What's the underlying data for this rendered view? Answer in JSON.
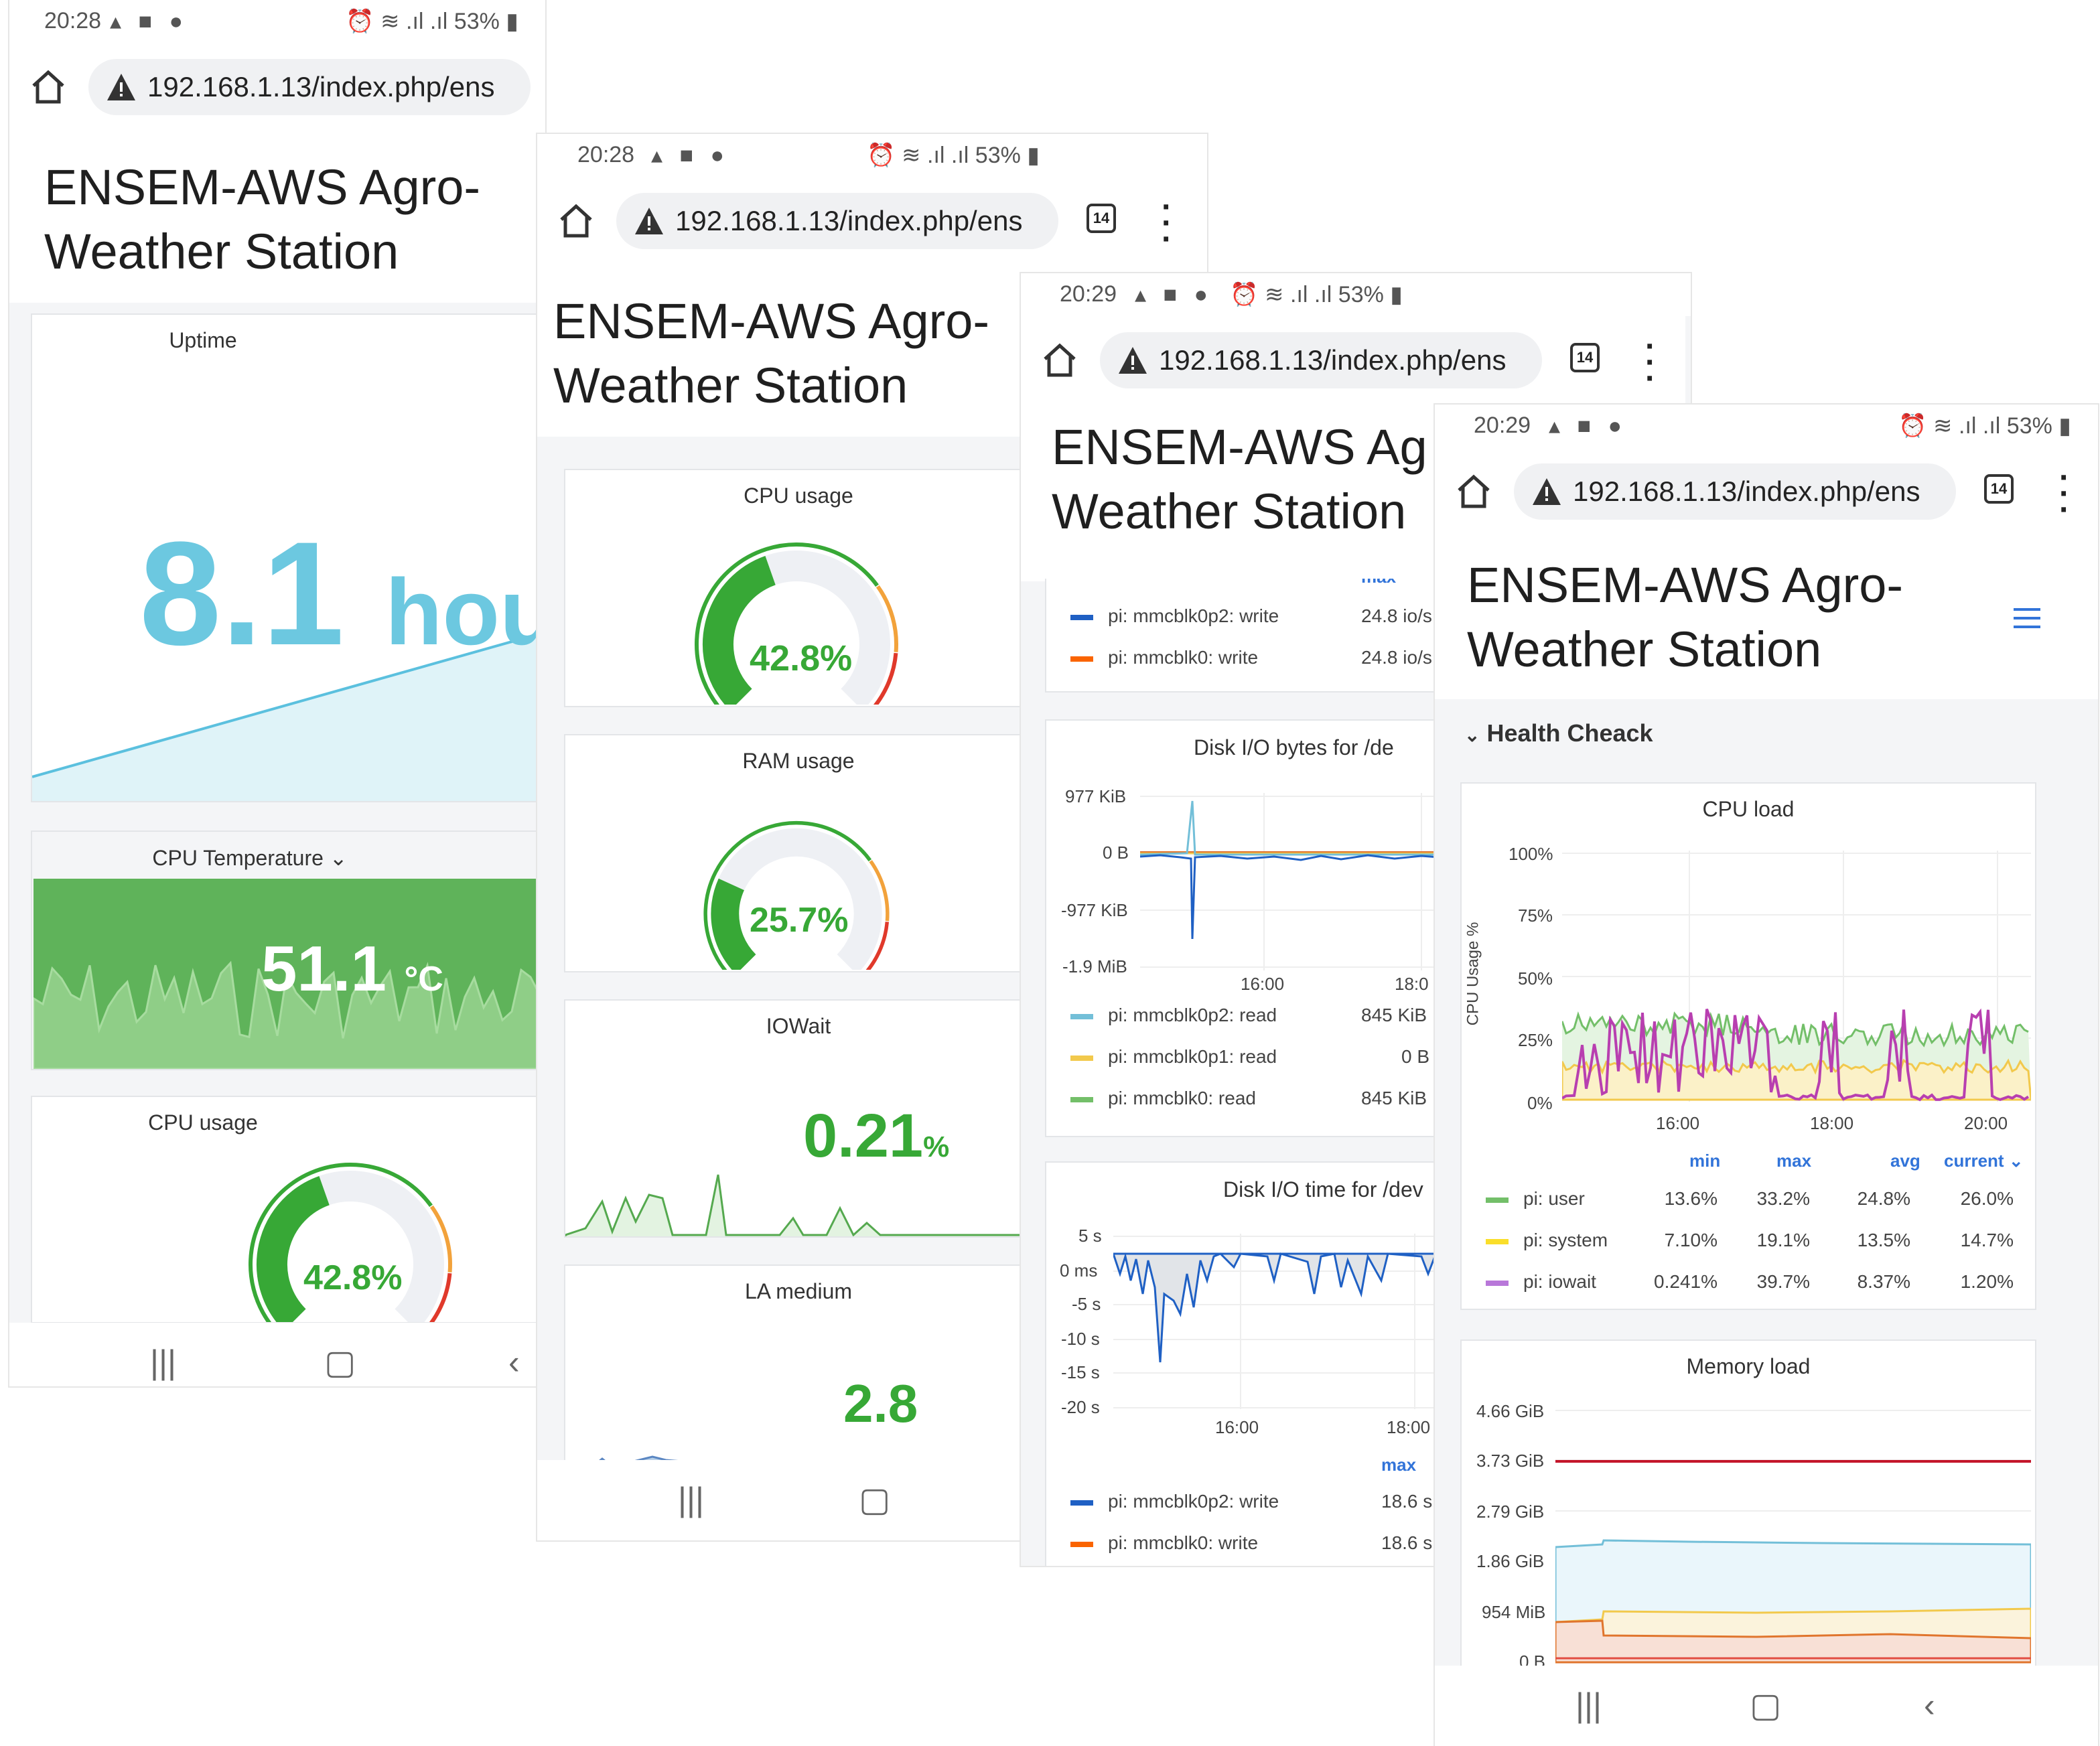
{
  "status": {
    "p1": {
      "time": "20:28",
      "battery": "53%"
    },
    "p2": {
      "time": "20:28",
      "battery": "53%"
    },
    "p3": {
      "time": "20:29",
      "battery": "53%"
    },
    "p4": {
      "time": "20:29",
      "battery": "53%"
    }
  },
  "browser": {
    "url": "192.168.1.13/index.php/ens",
    "tab_count": "14"
  },
  "page_title": "ENSEM-AWS Agro-\nWeather Station",
  "page_title_cut": "ENSEM-AWS Ag\nWeather Station",
  "screen1": {
    "uptime": {
      "title": "Uptime",
      "value": "8.1",
      "unit": "hou"
    },
    "cpu_temp": {
      "title": "CPU Temperature",
      "value": "51.1",
      "unit": "°C"
    },
    "cpu_usage": {
      "title": "CPU usage",
      "value": "42.8%",
      "fraction": 0.428
    }
  },
  "screen2": {
    "cpu_usage": {
      "title": "CPU usage",
      "value": "42.8%",
      "fraction": 0.428
    },
    "ram_usage": {
      "title": "RAM usage",
      "value": "25.7%",
      "fraction": 0.257
    },
    "iowait": {
      "title": "IOWait",
      "value": "0.21",
      "unit": "%"
    },
    "la_medium": {
      "title": "LA medium",
      "value": "2.8"
    }
  },
  "screen3": {
    "top_legend": [
      {
        "name": "pi: mmcblk0p2: write",
        "value": "24.8 io/s",
        "color": "#1f60c4"
      },
      {
        "name": "pi: mmcblk0: write",
        "value": "24.8 io/s",
        "color": "#fa6400"
      }
    ],
    "top_legend_header": "max",
    "disk_bytes": {
      "title": "Disk I/O bytes for /de",
      "y_ticks": [
        "977 KiB",
        "0 B",
        "-977 KiB",
        "-1.9 MiB"
      ],
      "x_ticks": [
        "16:00",
        "18:0"
      ],
      "legend": [
        {
          "name": "pi: mmcblk0p2: read",
          "value": "845 KiB",
          "color": "#73bfd8"
        },
        {
          "name": "pi: mmcblk0p1: read",
          "value": "0 B",
          "color": "#f2c94c"
        },
        {
          "name": "pi: mmcblk0: read",
          "value": "845 KiB",
          "color": "#73bf69"
        }
      ]
    },
    "disk_time": {
      "title": "Disk I/O time for /dev",
      "y_ticks": [
        "5 s",
        "0 ms",
        "-5 s",
        "-10 s",
        "-15 s",
        "-20 s"
      ],
      "x_ticks": [
        "16:00",
        "18:00"
      ],
      "legend_header": "max",
      "legend": [
        {
          "name": "pi: mmcblk0p2: write",
          "value": "18.6 s",
          "color": "#1f60c4"
        },
        {
          "name": "pi: mmcblk0: write",
          "value": "18.6 s",
          "color": "#fa6400"
        }
      ]
    }
  },
  "screen4": {
    "section": "Health Cheack",
    "cpu_load": {
      "title": "CPU load",
      "ylabel": "CPU Usage %",
      "y_ticks": [
        "100%",
        "75%",
        "50%",
        "25%",
        "0%"
      ],
      "x_ticks": [
        "16:00",
        "18:00",
        "20:00"
      ],
      "columns": [
        "min",
        "max",
        "avg",
        "current"
      ],
      "rows": [
        {
          "name": "pi: user",
          "min": "13.6%",
          "max": "33.2%",
          "avg": "24.8%",
          "current": "26.0%",
          "color": "#73bf69"
        },
        {
          "name": "pi: system",
          "min": "7.10%",
          "max": "19.1%",
          "avg": "13.5%",
          "current": "14.7%",
          "color": "#fade2a"
        },
        {
          "name": "pi: iowait",
          "min": "0.241%",
          "max": "39.7%",
          "avg": "8.37%",
          "current": "1.20%",
          "color": "#b877d9"
        }
      ]
    },
    "memory_load": {
      "title": "Memory load",
      "y_ticks": [
        "4.66 GiB",
        "3.73 GiB",
        "2.79 GiB",
        "1.86 GiB",
        "954 MiB",
        "0 B"
      ]
    }
  },
  "chart_data": [
    {
      "type": "line",
      "title": "CPU load",
      "ylabel": "CPU Usage %",
      "x": [
        "16:00",
        "18:00",
        "20:00"
      ],
      "ylim": [
        0,
        100
      ],
      "series": [
        {
          "name": "pi: user",
          "min": 13.6,
          "max": 33.2,
          "avg": 24.8,
          "current": 26.0
        },
        {
          "name": "pi: system",
          "min": 7.1,
          "max": 19.1,
          "avg": 13.5,
          "current": 14.7
        },
        {
          "name": "pi: iowait",
          "min": 0.241,
          "max": 39.7,
          "avg": 8.37,
          "current": 1.2
        }
      ]
    },
    {
      "type": "area",
      "title": "Memory load",
      "y_ticks": [
        "0 B",
        "954 MiB",
        "1.86 GiB",
        "2.79 GiB",
        "3.73 GiB",
        "4.66 GiB"
      ]
    }
  ]
}
